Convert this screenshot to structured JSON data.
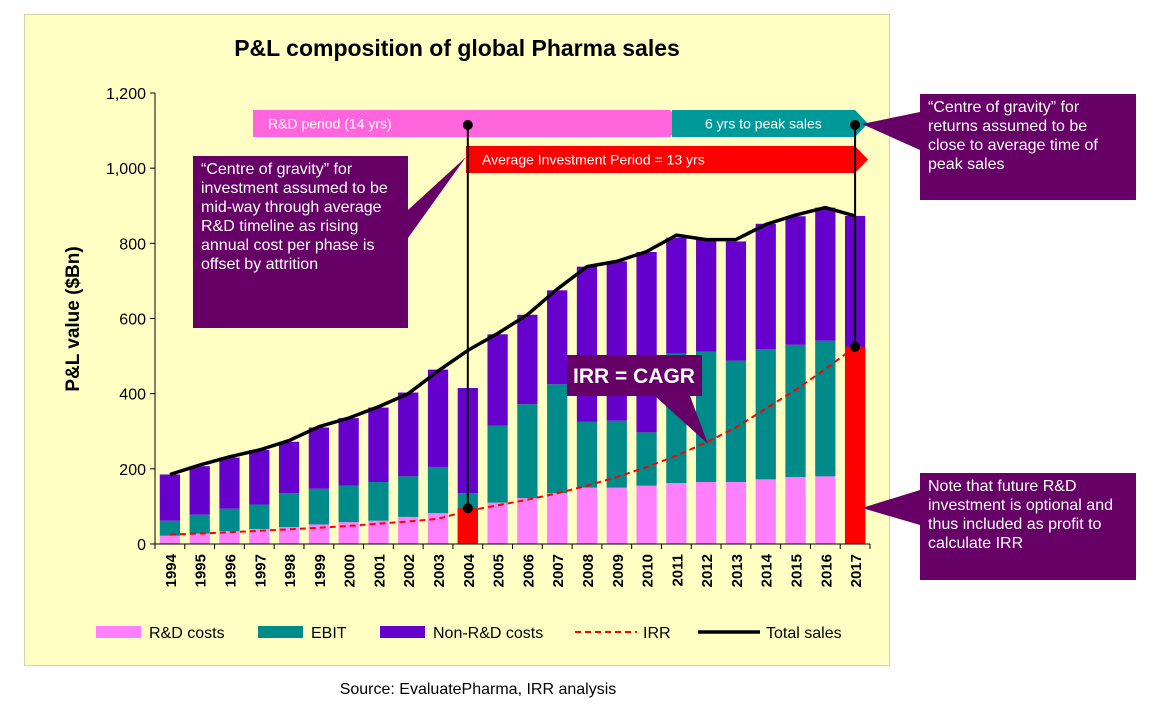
{
  "chart_data": {
    "type": "bar",
    "stacked": true,
    "title": "P&L composition of global Pharma sales",
    "ylabel": "P&L value ($Bn)",
    "xlabel": "",
    "ylim": [
      0,
      1200
    ],
    "yticks": [
      0,
      200,
      400,
      600,
      800,
      1000,
      1200
    ],
    "ytick_labels": [
      "0",
      "200",
      "400",
      "600",
      "800",
      "1,000",
      "1,200"
    ],
    "grid": false,
    "legend_position": "bottom",
    "categories": [
      "1994",
      "1995",
      "1996",
      "1997",
      "1998",
      "1999",
      "2000",
      "2001",
      "2002",
      "2003",
      "2004",
      "2005",
      "2006",
      "2007",
      "2008",
      "2009",
      "2010",
      "2011",
      "2012",
      "2013",
      "2014",
      "2015",
      "2016",
      "2017"
    ],
    "series": [
      {
        "name": "R&D costs",
        "color": "#ff80ff",
        "kind": "bar",
        "values": [
          22,
          28,
          34,
          40,
          45,
          52,
          58,
          62,
          72,
          82,
          null,
          110,
          122,
          135,
          150,
          150,
          155,
          162,
          165,
          165,
          172,
          178,
          180,
          null
        ]
      },
      {
        "name": "EBIT",
        "color": "#008b8b",
        "kind": "bar",
        "values": [
          40,
          50,
          60,
          65,
          90,
          95,
          97,
          103,
          108,
          123,
          135,
          205,
          250,
          290,
          175,
          178,
          142,
          345,
          347,
          323,
          346,
          352,
          361,
          null
        ]
      },
      {
        "name": "Non-R&D costs",
        "color": "#6600cc",
        "kind": "bar",
        "values": [
          123,
          129,
          136,
          145,
          137,
          163,
          180,
          198,
          223,
          259,
          280,
          243,
          238,
          250,
          413,
          424,
          480,
          308,
          298,
          317,
          334,
          342,
          354,
          873
        ]
      },
      {
        "name": "IRR",
        "color": "#ff0000",
        "kind": "dashed-line",
        "values": [
          25,
          28,
          31,
          35,
          39,
          43,
          48,
          54,
          60,
          67,
          88,
          103,
          118,
          135,
          155,
          178,
          205,
          235,
          270,
          310,
          360,
          410,
          465,
          525
        ]
      },
      {
        "name": "Total sales",
        "color": "#000000",
        "kind": "line",
        "values": [
          185,
          210,
          232,
          250,
          275,
          312,
          335,
          365,
          400,
          460,
          515,
          560,
          610,
          678,
          738,
          752,
          778,
          822,
          810,
          810,
          850,
          875,
          895,
          873
        ]
      }
    ],
    "highlight_bars": {
      "2004": 95,
      "2017": 525
    },
    "highlight_color": "#ff0000",
    "annotations": {
      "rd_period": "R&D period (14 yrs)",
      "peak_sales": "6 yrs to peak sales",
      "avg_investment": "Average Investment Period = 13 yrs",
      "irr_cagr": "IRR = CAGR",
      "centre_investment": "“Centre of gravity” for investment assumed to be mid-way through average R&D timeline as rising annual cost per phase is offset by attrition",
      "centre_returns": "“Centre of gravity” for returns assumed to be close to average time of peak sales",
      "note_future": "Note that future R&D investment is optional and thus included as profit to calculate IRR"
    },
    "source": "Source: EvaluatePharma,  IRR analysis"
  }
}
